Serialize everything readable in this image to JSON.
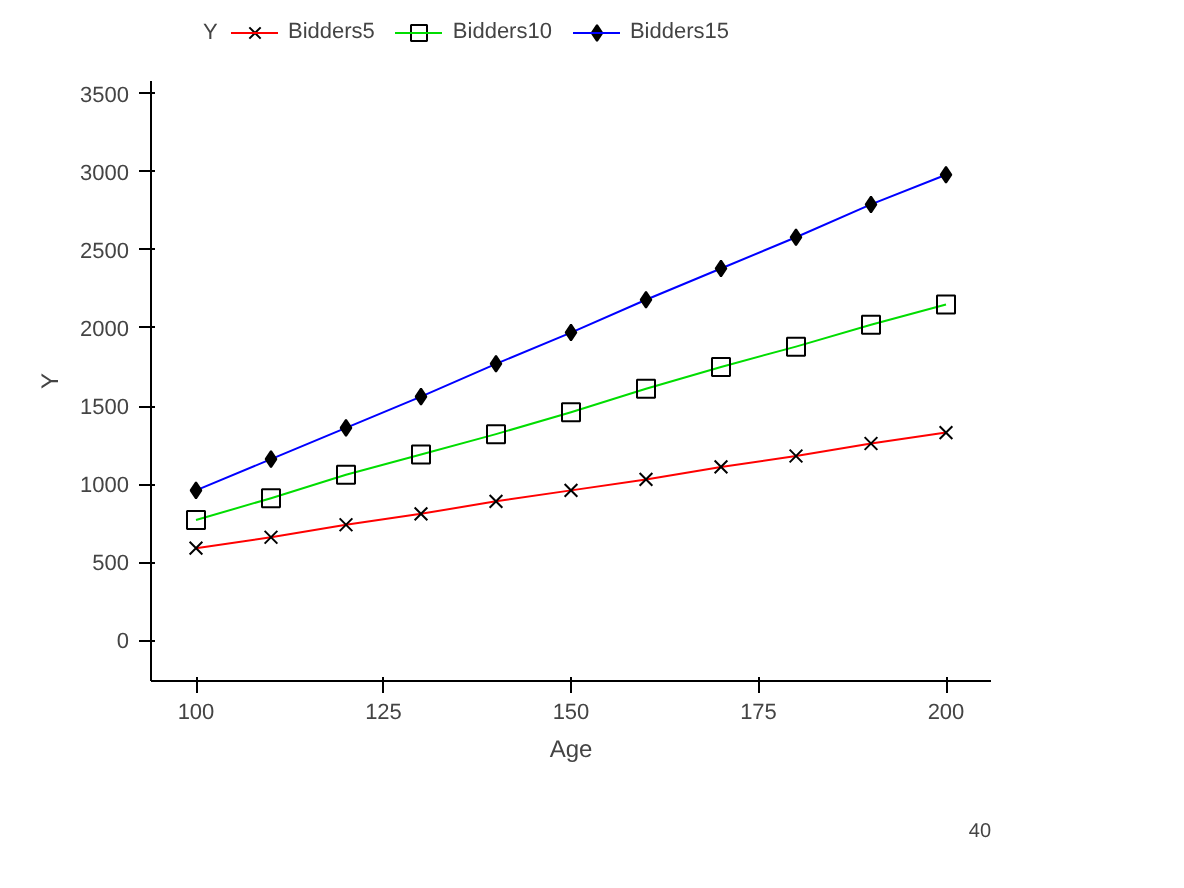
{
  "chart_data": {
    "type": "line",
    "xlabel": "Age",
    "ylabel": "Y",
    "legend_title": "Y",
    "legend": "top",
    "x": [
      100,
      110,
      120,
      130,
      140,
      150,
      160,
      170,
      180,
      190,
      200
    ],
    "series": [
      {
        "name": "Bidders5",
        "color": "#ff0000",
        "marker": "cross",
        "values": [
          590,
          660,
          740,
          810,
          890,
          960,
          1030,
          1110,
          1180,
          1260,
          1330
        ]
      },
      {
        "name": "Bidders10",
        "color": "#00dd00",
        "marker": "square",
        "values": [
          770,
          910,
          1060,
          1190,
          1320,
          1460,
          1610,
          1750,
          1880,
          2020,
          2150
        ]
      },
      {
        "name": "Bidders15",
        "color": "#0000ff",
        "marker": "diamond",
        "values": [
          960,
          1160,
          1360,
          1560,
          1770,
          1970,
          2180,
          2380,
          2580,
          2790,
          2980
        ]
      }
    ],
    "xlim": [
      94,
      206
    ],
    "ylim": [
      -260,
      3580
    ],
    "xticks": [
      100,
      125,
      150,
      175,
      200
    ],
    "yticks": [
      0,
      500,
      1000,
      1500,
      2000,
      2500,
      3000,
      3500
    ],
    "grid": false,
    "line_style": "solid",
    "annotations": [
      "40"
    ]
  }
}
